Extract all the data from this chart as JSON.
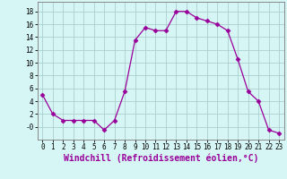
{
  "x": [
    0,
    1,
    2,
    3,
    4,
    5,
    6,
    7,
    8,
    9,
    10,
    11,
    12,
    13,
    14,
    15,
    16,
    17,
    18,
    19,
    20,
    21,
    22,
    23
  ],
  "y": [
    5,
    2,
    1,
    1,
    1,
    1,
    -0.5,
    1,
    5.5,
    13.5,
    15.5,
    15,
    15,
    18,
    18,
    17,
    16.5,
    16,
    15,
    10.5,
    5.5,
    4,
    -0.5,
    -1
  ],
  "line_color": "#990099",
  "marker": "D",
  "marker_size": 2.5,
  "bg_color": "#d6f5f5",
  "grid_color": "#aacfcf",
  "xlabel": "Windchill (Refroidissement éolien,°C)",
  "xlabel_fontsize": 7,
  "ylim": [
    -2,
    19.5
  ],
  "xlim": [
    -0.5,
    23.5
  ],
  "yticks": [
    0,
    2,
    4,
    6,
    8,
    10,
    12,
    14,
    16,
    18
  ],
  "ytick_labels": [
    "-0",
    "2",
    "4",
    "6",
    "8",
    "10",
    "12",
    "14",
    "16",
    "18"
  ],
  "xticks": [
    0,
    1,
    2,
    3,
    4,
    5,
    6,
    7,
    8,
    9,
    10,
    11,
    12,
    13,
    14,
    15,
    16,
    17,
    18,
    19,
    20,
    21,
    22,
    23
  ],
  "xtick_labels": [
    "0",
    "1",
    "2",
    "3",
    "4",
    "5",
    "6",
    "7",
    "8",
    "9",
    "1011",
    "",
    "1314",
    "1516",
    "1718",
    "1920",
    "2122",
    "23",
    "",
    "",
    "",
    "",
    "",
    ""
  ],
  "tick_fontsize": 5.5
}
